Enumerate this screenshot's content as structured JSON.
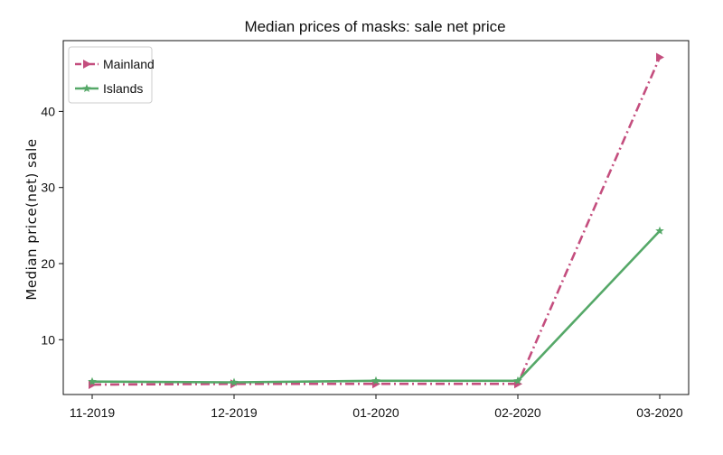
{
  "chart_data": {
    "type": "line",
    "title": "Median prices of masks: sale net price",
    "xlabel": "",
    "ylabel": "Median price(net) sale",
    "categories": [
      "11-2019",
      "12-2019",
      "01-2020",
      "02-2020",
      "03-2020"
    ],
    "yticks": [
      10,
      20,
      30,
      40
    ],
    "ylim": [
      2.8,
      49.3
    ],
    "grid": false,
    "legend_position": "top-left",
    "series": [
      {
        "name": "Mainland",
        "values": [
          4.1,
          4.2,
          4.2,
          4.2,
          47.1
        ],
        "color": "#c44e7e",
        "line_style": "dash-dot",
        "marker": "triangle-right"
      },
      {
        "name": "Islands",
        "values": [
          4.5,
          4.4,
          4.6,
          4.6,
          24.3
        ],
        "color": "#55a868",
        "line_style": "solid",
        "marker": "star"
      }
    ]
  }
}
